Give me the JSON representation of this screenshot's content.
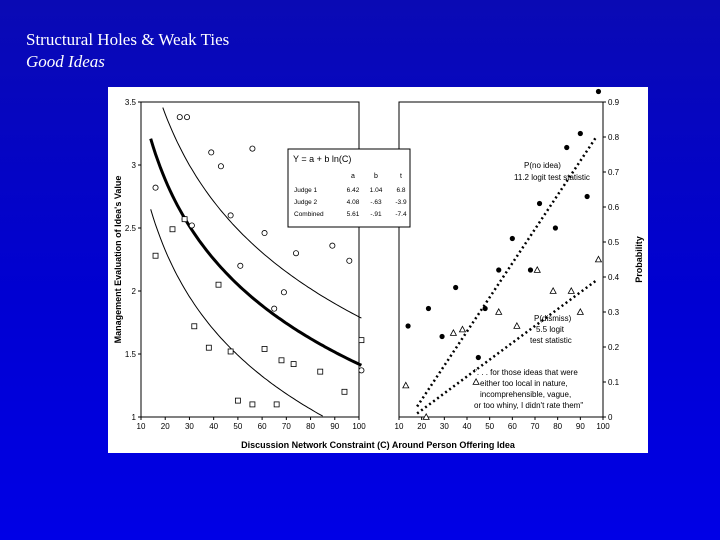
{
  "slide": {
    "title": "Structural Holes & Weak Ties",
    "subtitle": "Good Ideas"
  },
  "chart_data": [
    {
      "type": "scatter",
      "panel": "left",
      "xlabel": "",
      "ylabel": "Management Evaluation of Idea's Value",
      "xlim": [
        10,
        100
      ],
      "ylim": [
        1,
        3.5
      ],
      "xticks": [
        "10",
        "20",
        "30",
        "40",
        "50",
        "60",
        "70",
        "80",
        "90",
        "100"
      ],
      "yticks": [
        "1",
        "1.5",
        "2",
        "2.5",
        "3",
        "3.5"
      ],
      "series": [
        {
          "marker": "circle",
          "points": [
            [
              16,
              2.82
            ],
            [
              26,
              3.38
            ],
            [
              29,
              3.38
            ],
            [
              28,
              2.57
            ],
            [
              31,
              2.52
            ],
            [
              39,
              3.1
            ],
            [
              43,
              2.99
            ],
            [
              47,
              2.6
            ],
            [
              51,
              2.2
            ],
            [
              56,
              3.13
            ],
            [
              61,
              2.46
            ],
            [
              65,
              1.86
            ],
            [
              69,
              1.99
            ],
            [
              74,
              2.3
            ],
            [
              89,
              2.36
            ],
            [
              96,
              2.24
            ],
            [
              101,
              1.37
            ]
          ]
        },
        {
          "marker": "square",
          "points": [
            [
              16,
              2.28
            ],
            [
              23,
              2.49
            ],
            [
              28,
              2.57
            ],
            [
              32,
              1.72
            ],
            [
              38,
              1.55
            ],
            [
              42,
              2.05
            ],
            [
              47,
              1.52
            ],
            [
              50,
              1.13
            ],
            [
              56,
              1.1
            ],
            [
              61,
              1.54
            ],
            [
              66,
              1.1
            ],
            [
              68,
              1.45
            ],
            [
              73,
              1.42
            ],
            [
              84,
              1.36
            ],
            [
              94,
              1.2
            ],
            [
              101,
              1.61
            ]
          ]
        }
      ],
      "fits": [
        {
          "name": "combined",
          "a": 5.61,
          "b": -0.91,
          "style": "bold"
        },
        {
          "name": "upper",
          "a": 6.4,
          "b": -1.0,
          "style": "thin"
        },
        {
          "name": "lower",
          "a": 5.05,
          "b": -0.91,
          "style": "thin"
        }
      ],
      "table": {
        "equation": "Y = a + b ln(C)",
        "headers": [
          "",
          "a",
          "b",
          "t"
        ],
        "rows": [
          [
            "Judge 1",
            "6.42",
            "1.04",
            "6.8"
          ],
          [
            "Judge 2",
            "4.08",
            "-.63",
            "-3.9"
          ],
          [
            "Combined",
            "5.61",
            "-.91",
            "-7.4"
          ]
        ]
      }
    },
    {
      "type": "scatter",
      "panel": "right",
      "xlabel": "Discussion Network Constraint (C) Around Person Offering Idea",
      "ylabel": "Probability",
      "xlim": [
        10,
        100
      ],
      "ylim": [
        0,
        0.9
      ],
      "xticks": [
        "10",
        "20",
        "30",
        "40",
        "50",
        "60",
        "70",
        "80",
        "90",
        "100"
      ],
      "yticks": [
        "0",
        "0.1",
        "0.2",
        "0.3",
        "0.4",
        "0.5",
        "0.6",
        "0.7",
        "0.8",
        "0.9"
      ],
      "series": [
        {
          "marker": "filled-circle",
          "points": [
            [
              14,
              0.26
            ],
            [
              23,
              0.31
            ],
            [
              29,
              0.23
            ],
            [
              35,
              0.37
            ],
            [
              45,
              0.17
            ],
            [
              48,
              0.31
            ],
            [
              54,
              0.42
            ],
            [
              60,
              0.51
            ],
            [
              68,
              0.42
            ],
            [
              72,
              0.61
            ],
            [
              79,
              0.54
            ],
            [
              84,
              0.77
            ],
            [
              90,
              0.81
            ],
            [
              93,
              0.63
            ],
            [
              98,
              0.93
            ]
          ]
        },
        {
          "marker": "triangle",
          "points": [
            [
              13,
              0.09
            ],
            [
              22,
              0
            ],
            [
              34,
              0.24
            ],
            [
              38,
              0.25
            ],
            [
              44,
              0.1
            ],
            [
              54,
              0.3
            ],
            [
              62,
              0.26
            ],
            [
              71,
              0.42
            ],
            [
              78,
              0.36
            ],
            [
              86,
              0.36
            ],
            [
              90,
              0.3
            ],
            [
              98,
              0.45
            ]
          ]
        }
      ],
      "fits": [
        {
          "name": "P(no idea)",
          "from": [
            18,
            0.03
          ],
          "to": [
            97,
            0.8
          ]
        },
        {
          "name": "P(dismiss)",
          "from": [
            18,
            0.01
          ],
          "to": [
            97,
            0.39
          ]
        }
      ],
      "annotations": [
        "P(no idea)",
        "11.2 logit test statistic",
        "P(dismiss)",
        "5.5 logit",
        "test statistic",
        "\". . . for those ideas that were",
        "either too local in nature,",
        "incomprehensible, vague,",
        "or too whiny, I didn't rate them\""
      ]
    }
  ]
}
